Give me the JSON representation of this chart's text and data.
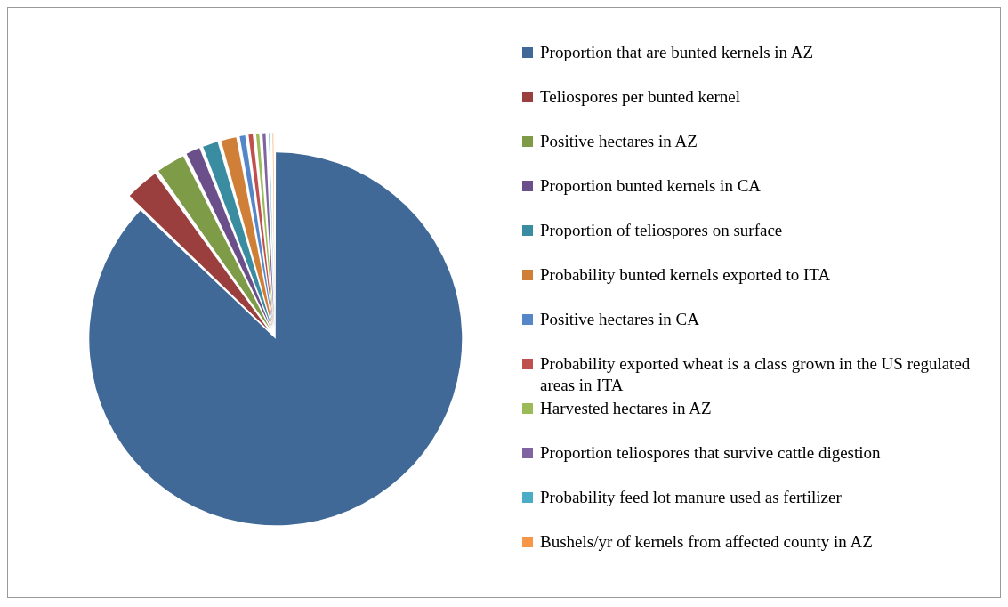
{
  "chart_data": {
    "type": "pie",
    "legend": "right",
    "categories": [
      "Proportion that are bunted kernels in AZ",
      "Teliospores per bunted kernel",
      "Positive hectares in AZ",
      "Proportion bunted kernels in CA",
      "Proportion of teliospores on surface",
      "Probability bunted kernels exported to ITA",
      "Positive hectares in CA",
      "Probability exported wheat is a class grown in the US regulated areas in ITA",
      "Harvested hectares in AZ",
      "Proportion teliospores that survive cattle digestion",
      "Probability feed lot manure used as fertilizer",
      "Bushels/yr of kernels from affected county in AZ"
    ],
    "values": [
      87.2,
      3.0,
      2.6,
      1.4,
      1.5,
      1.5,
      0.7,
      0.6,
      0.5,
      0.5,
      0.3,
      0.3
    ],
    "colors": [
      "#416998",
      "#9b3f3e",
      "#7e9b48",
      "#6a4f8a",
      "#3a8ca0",
      "#d07f38",
      "#5586c7",
      "#c0504d",
      "#9bbb59",
      "#8064a2",
      "#4bacc6",
      "#f79646"
    ]
  }
}
